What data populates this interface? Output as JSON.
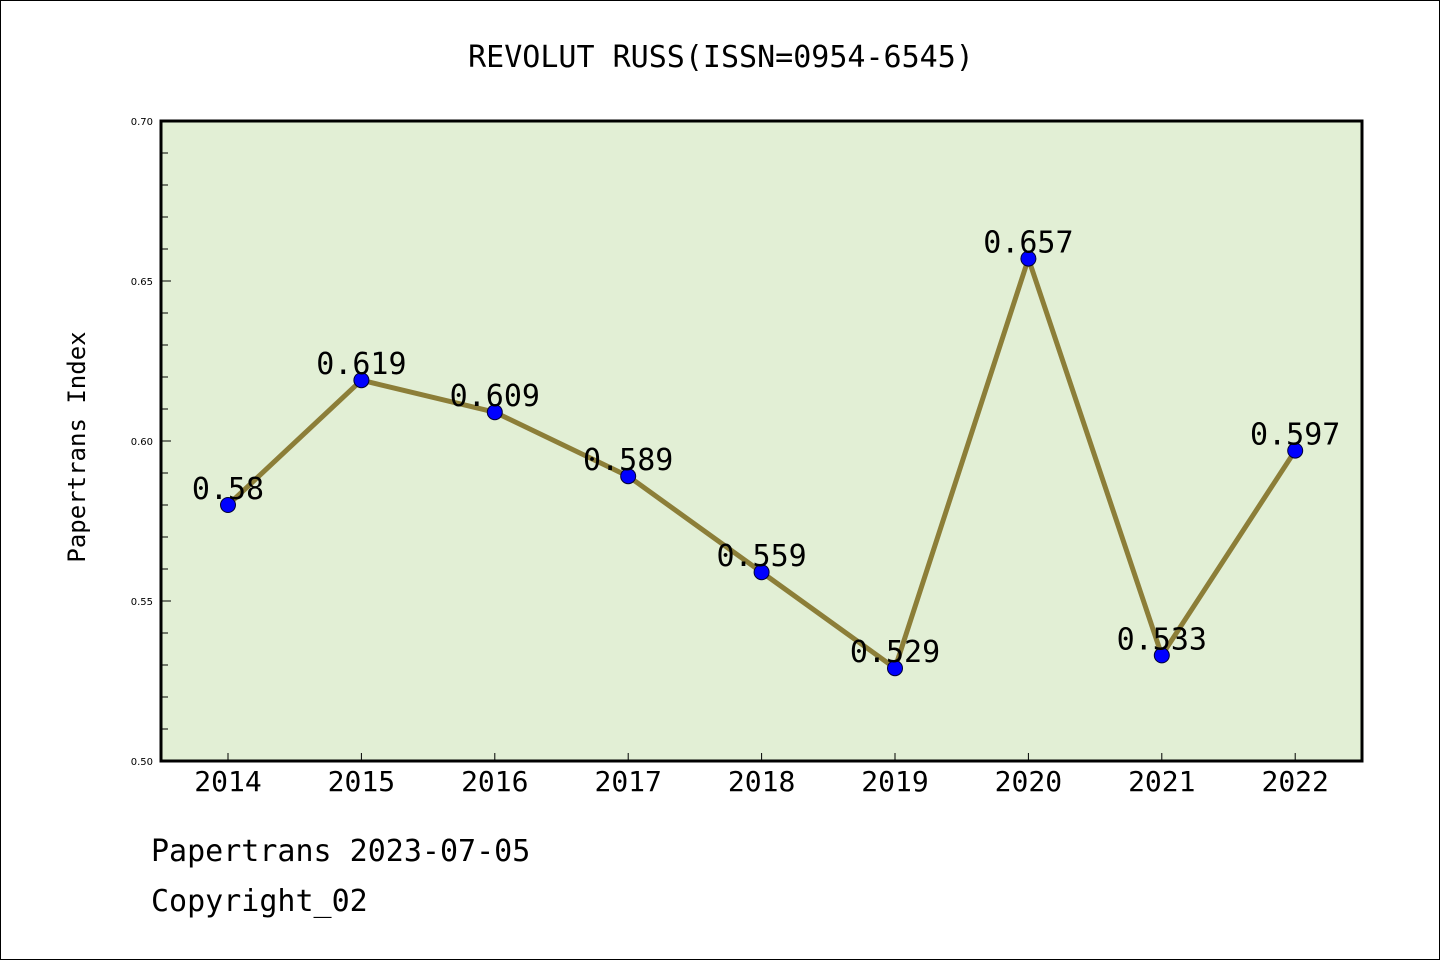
{
  "colors": {
    "plot_background": "#e2efd5",
    "line": "#8c7e38",
    "marker": "#0000ff",
    "axis": "#000000"
  },
  "chart_data": {
    "type": "line",
    "title": "REVOLUT RUSS(ISSN=0954-6545)",
    "xlabel": "",
    "ylabel": "Papertrans Index",
    "categories": [
      "2014",
      "2015",
      "2016",
      "2017",
      "2018",
      "2019",
      "2020",
      "2021",
      "2022"
    ],
    "series": [
      {
        "values": [
          0.58,
          0.619,
          0.609,
          0.589,
          0.559,
          0.529,
          0.657,
          0.533,
          0.597
        ],
        "data_labels": [
          "0.58",
          "0.619",
          "0.609",
          "0.589",
          "0.559",
          "0.529",
          "0.657",
          "0.533",
          "0.597"
        ]
      }
    ],
    "ylim": [
      0.5,
      0.7
    ],
    "yticks": [
      "0.50",
      "0.55",
      "0.60",
      "0.65",
      "0.70"
    ],
    "grid": false,
    "legend": "none"
  },
  "footer": {
    "date_line": "Papertrans 2023-07-05",
    "copyright_line": "Copyright_02"
  }
}
